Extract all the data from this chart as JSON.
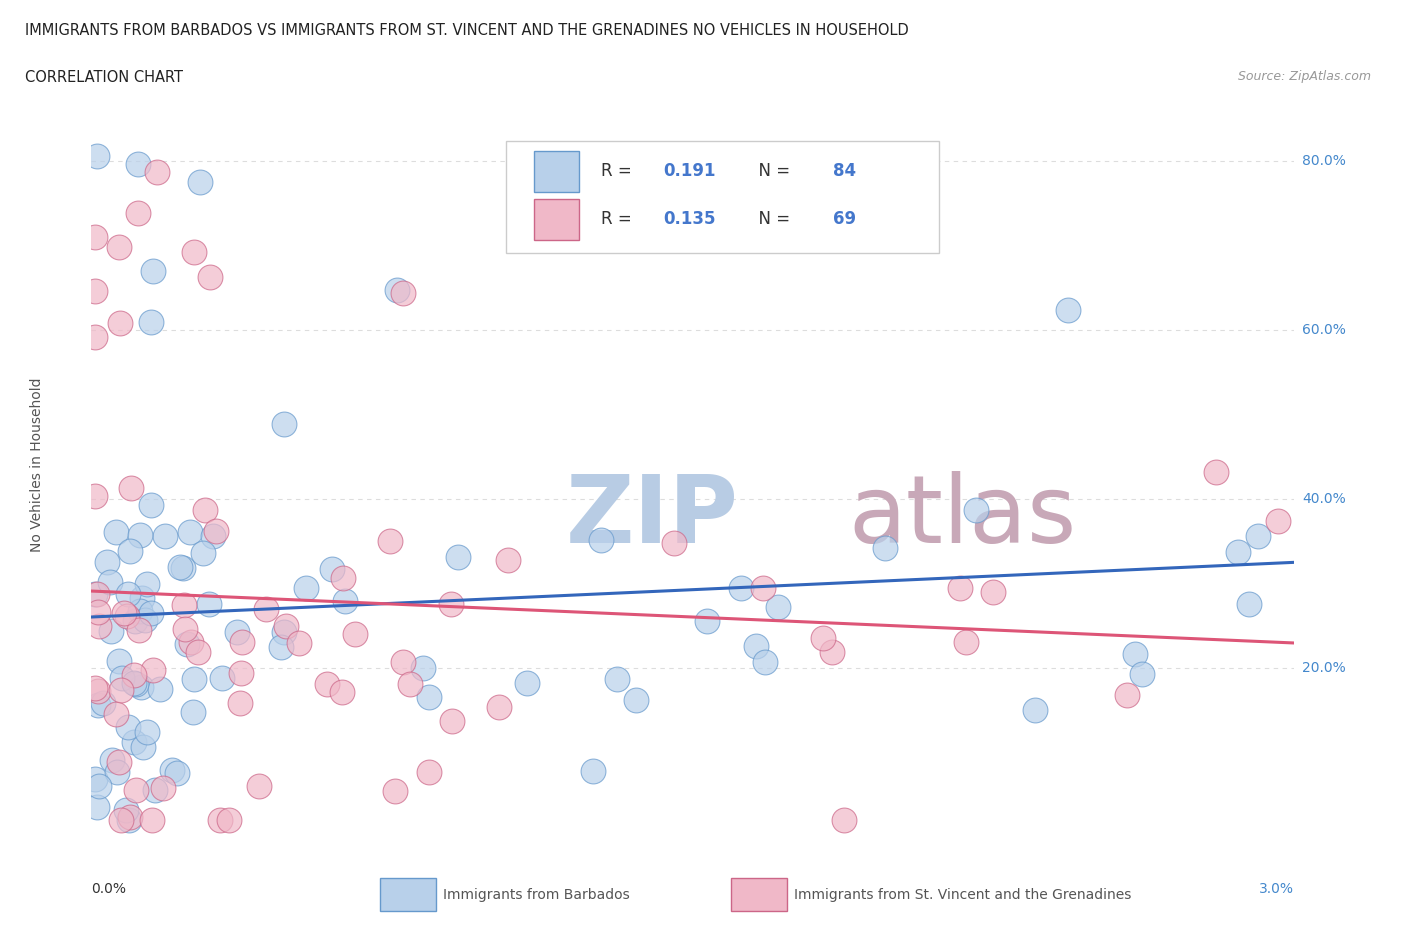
{
  "title_line1": "IMMIGRANTS FROM BARBADOS VS IMMIGRANTS FROM ST. VINCENT AND THE GRENADINES NO VEHICLES IN HOUSEHOLD",
  "title_line2": "CORRELATION CHART",
  "source": "Source: ZipAtlas.com",
  "ylabel": "No Vehicles in Household",
  "xmin": 0.0,
  "xmax": 0.03,
  "ymin": 0.0,
  "ymax": 0.88,
  "series1_name": "Immigrants from Barbados",
  "series1_color": "#b8d0ea",
  "series1_edge_color": "#6699cc",
  "series1_R": "0.191",
  "series1_N": "84",
  "series1_line_color": "#3366bb",
  "series2_name": "Immigrants from St. Vincent and the Grenadines",
  "series2_color": "#f0b8c8",
  "series2_edge_color": "#cc6688",
  "series2_R": "0.135",
  "series2_N": "69",
  "series2_line_color": "#dd5577",
  "legend_text_color": "#4477cc",
  "watermark": "ZIPatlas",
  "watermark_color_zip": "#b8cce4",
  "watermark_color_atlas": "#c8a8b8",
  "background_color": "#ffffff",
  "grid_color": "#dddddd",
  "right_label_color": "#4488cc",
  "ytick_positions": [
    0.2,
    0.4,
    0.6,
    0.8
  ],
  "ytick_labels": [
    "20.0%",
    "40.0%",
    "60.0%",
    "80.0%"
  ]
}
